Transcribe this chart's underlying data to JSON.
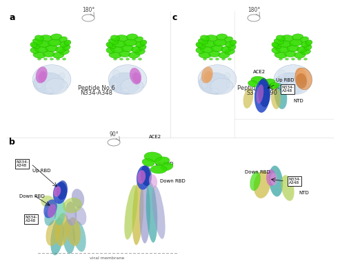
{
  "panel_a_label": "a",
  "panel_b_label": "b",
  "panel_c_label": "c",
  "panel_a_text1": "Peptide No.6",
  "panel_a_text2": "N334-A348",
  "panel_c_text1": "Peptide No.19-20",
  "panel_c_text2": "S373-L390",
  "rotation_label_a": "180°",
  "rotation_label_b": "90°",
  "rotation_label_c": "180°",
  "ace2_label_b": "ACE2",
  "ace2_label_br": "ACE2",
  "up_rbd_left": "Up RBD",
  "up_rbd_mid": "Up RBD",
  "down_rbd_mid": "Down RBD",
  "down_rbd_left": "Down RBD",
  "n334_a348": "N334-\nA348",
  "up_rbd_right": "Up RBD",
  "down_rbd_right": "Down RBD",
  "n334_a348_up": "N334-\nA348",
  "n334_a348_down": "N334-\nA348",
  "ntd_up": "NTD",
  "ntd_down": "NTD",
  "viral_membrane": "viral membrane",
  "bg_color": "#ffffff",
  "green_main": "#33dd00",
  "green_dark": "#22aa00",
  "green_light": "#77ee44",
  "light_blue": "#c5d3e8",
  "lighter_blue": "#d8e3f0",
  "blue_gray": "#a0b4cc",
  "purple": "#cc66cc",
  "purple_light": "#dd99dd",
  "orange": "#e8a060",
  "orange_dark": "#c07030",
  "blue_dark": "#1133aa",
  "blue_med": "#3355cc",
  "blue_light": "#6688cc",
  "yellow_green": "#aacc44",
  "yellow": "#ccbb44",
  "teal": "#44aaaa",
  "teal_light": "#66ccaa",
  "lavender": "#9999cc",
  "font_label": 9,
  "font_text": 6,
  "font_small": 5,
  "font_tiny": 4.5
}
